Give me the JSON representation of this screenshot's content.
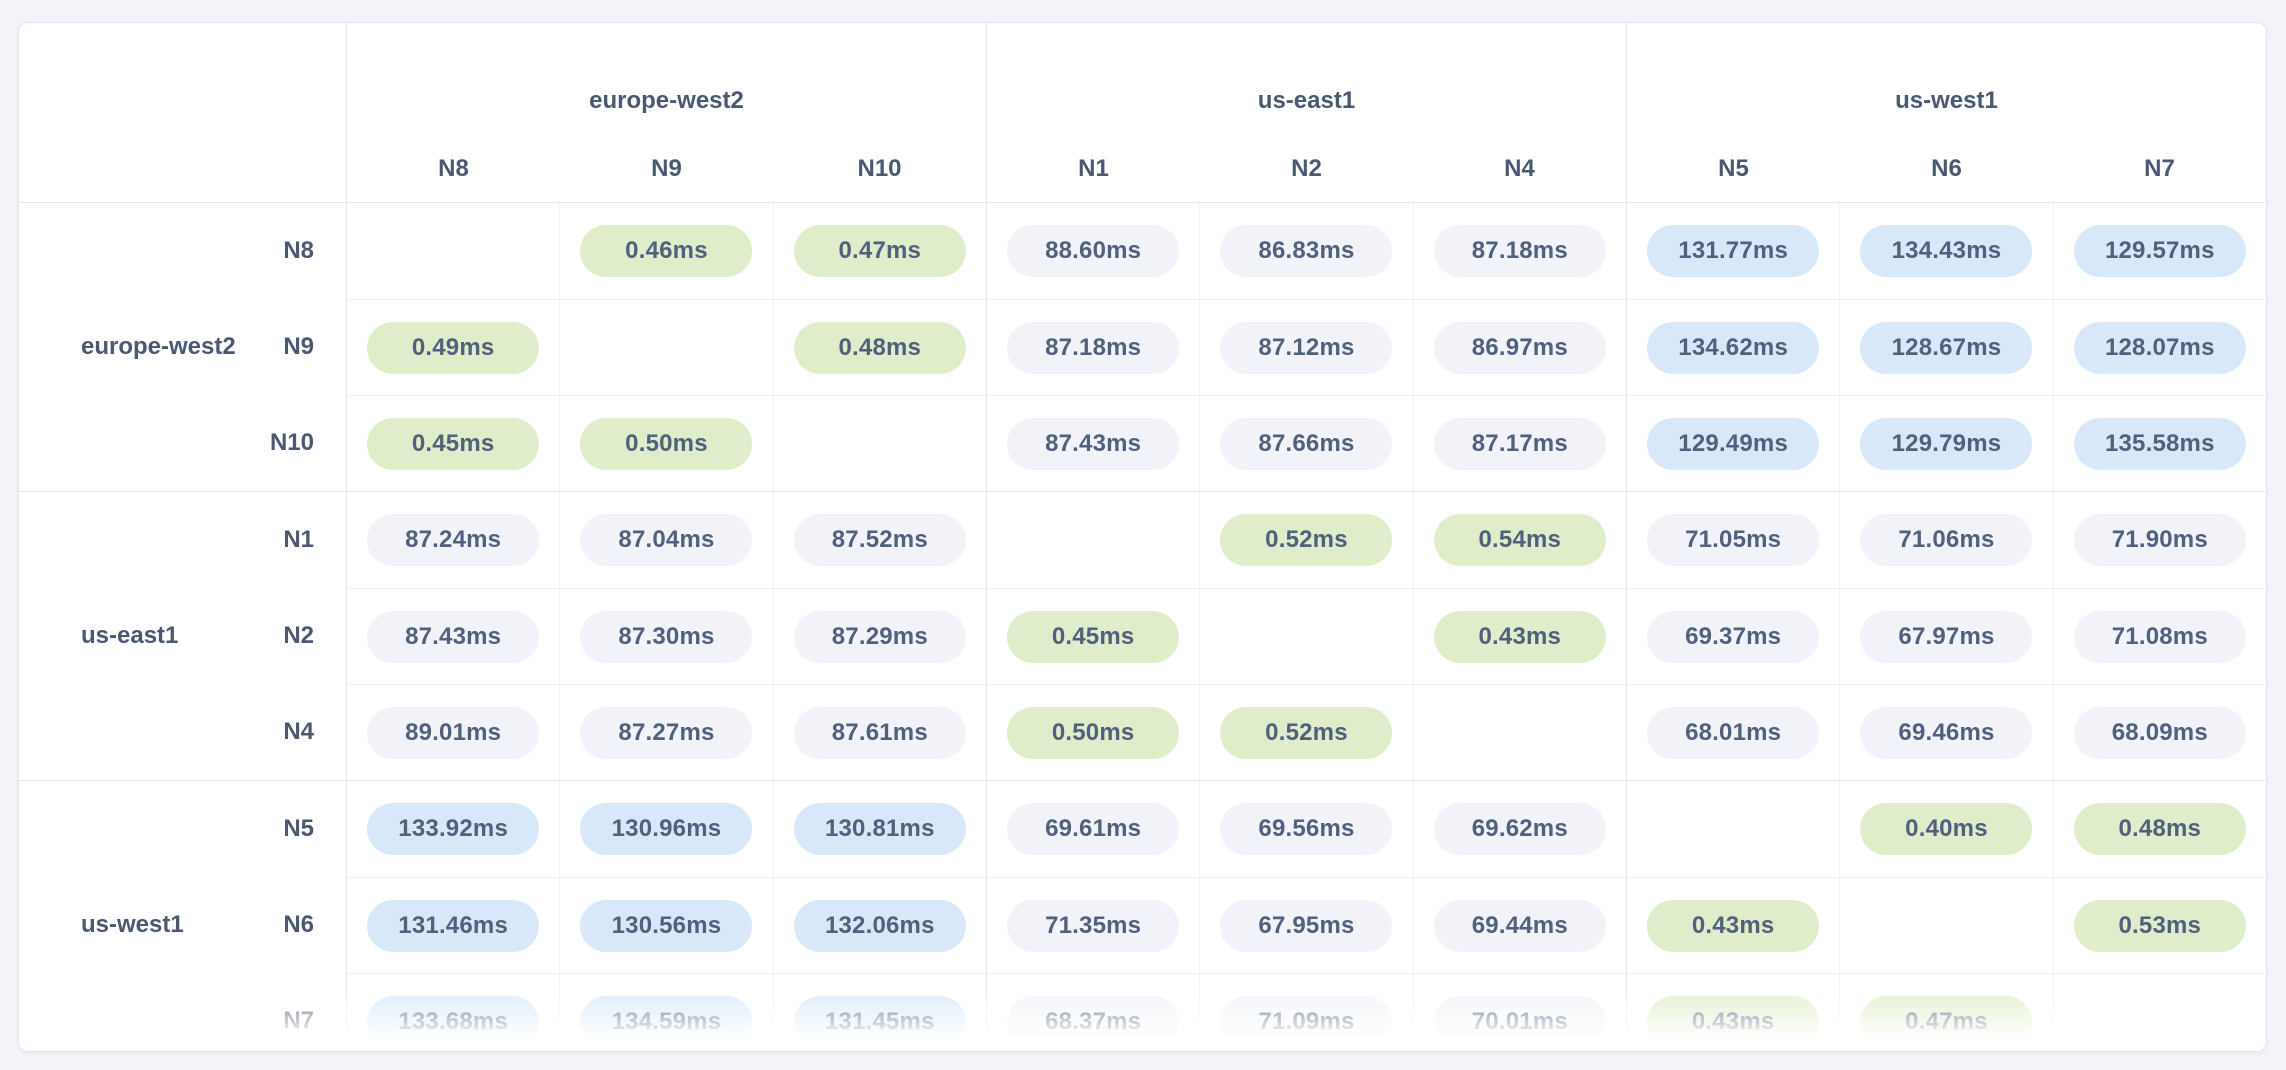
{
  "unit": "ms",
  "regions": [
    {
      "name": "europe-west2",
      "nodes": [
        "N8",
        "N9",
        "N10"
      ]
    },
    {
      "name": "us-east1",
      "nodes": [
        "N1",
        "N2",
        "N4"
      ]
    },
    {
      "name": "us-west1",
      "nodes": [
        "N5",
        "N6",
        "N7"
      ]
    }
  ],
  "matrix": {
    "node_order": [
      "N8",
      "N9",
      "N10",
      "N1",
      "N2",
      "N4",
      "N5",
      "N6",
      "N7"
    ],
    "values_ms": [
      [
        null,
        0.46,
        0.47,
        88.6,
        86.83,
        87.18,
        131.77,
        134.43,
        129.57
      ],
      [
        0.49,
        null,
        0.48,
        87.18,
        87.12,
        86.97,
        134.62,
        128.67,
        128.07
      ],
      [
        0.45,
        0.5,
        null,
        87.43,
        87.66,
        87.17,
        129.49,
        129.79,
        135.58
      ],
      [
        87.24,
        87.04,
        87.52,
        null,
        0.52,
        0.54,
        71.05,
        71.06,
        71.9
      ],
      [
        87.43,
        87.3,
        87.29,
        0.45,
        null,
        0.43,
        69.37,
        67.97,
        71.08
      ],
      [
        89.01,
        87.27,
        87.61,
        0.5,
        0.52,
        null,
        68.01,
        69.46,
        68.09
      ],
      [
        133.92,
        130.96,
        130.81,
        69.61,
        69.56,
        69.62,
        null,
        0.4,
        0.48
      ],
      [
        131.46,
        130.56,
        132.06,
        71.35,
        67.95,
        69.44,
        0.43,
        null,
        0.53
      ],
      [
        133.68,
        134.59,
        131.45,
        68.37,
        71.09,
        70.01,
        0.43,
        0.47,
        null
      ]
    ],
    "tones": [
      [
        null,
        "g",
        "g",
        "n",
        "n",
        "n",
        "b",
        "b",
        "b"
      ],
      [
        "g",
        null,
        "g",
        "n",
        "n",
        "n",
        "b",
        "b",
        "b"
      ],
      [
        "g",
        "g",
        null,
        "n",
        "n",
        "n",
        "b",
        "b",
        "b"
      ],
      [
        "n",
        "n",
        "n",
        null,
        "g",
        "g",
        "n",
        "n",
        "n"
      ],
      [
        "n",
        "n",
        "n",
        "g",
        null,
        "g",
        "n",
        "n",
        "n"
      ],
      [
        "n",
        "n",
        "n",
        "g",
        "g",
        null,
        "n",
        "n",
        "n"
      ],
      [
        "b",
        "b",
        "b",
        "n",
        "n",
        "n",
        null,
        "g",
        "g"
      ],
      [
        "b",
        "b",
        "b",
        "n",
        "n",
        "n",
        "g",
        null,
        "g"
      ],
      [
        "b",
        "b",
        "b",
        "n",
        "n",
        "n",
        "g",
        "g",
        null
      ]
    ]
  },
  "colors": {
    "page_background": "#f3f4f9",
    "card_background": "#ffffff",
    "card_border": "#e3e6ee",
    "grid_line_light": "#eef1f6",
    "grid_line_group": "#e2e6ee",
    "header_text": "#4b5872",
    "cell_text": "#51607c",
    "pill_green": "#dfedca",
    "pill_neutral": "#f1f3f8",
    "pill_blue": "#d9e8f8"
  }
}
